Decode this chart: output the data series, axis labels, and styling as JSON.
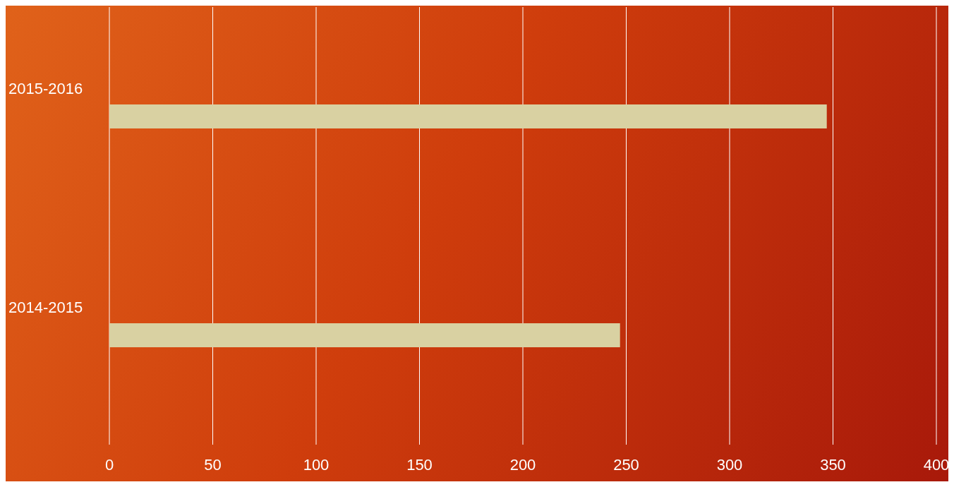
{
  "chart_data": {
    "type": "bar",
    "orientation": "horizontal",
    "categories": [
      "2015-2016",
      "2014-2015"
    ],
    "series": [
      {
        "color": "#d9d1a2",
        "values": [
          347,
          247
        ]
      }
    ],
    "xlim": [
      0,
      400
    ],
    "xticks": [
      0,
      50,
      100,
      150,
      200,
      250,
      300,
      350,
      400
    ],
    "grid": "x"
  }
}
